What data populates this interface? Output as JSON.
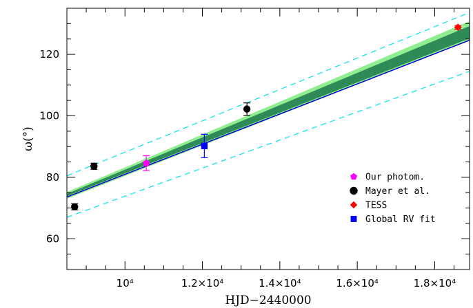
{
  "chart_data": {
    "type": "scatter",
    "xlabel": "HJD−2440000",
    "ylabel": "ω(°)",
    "xlim": [
      8500,
      18900
    ],
    "ylim": [
      50,
      135
    ],
    "x_ticks": [
      {
        "value": 10000,
        "label": "10⁴"
      },
      {
        "value": 12000,
        "label": "1.2×10⁴"
      },
      {
        "value": 14000,
        "label": "1.4×10⁴"
      },
      {
        "value": 16000,
        "label": "1.6×10⁴"
      },
      {
        "value": 18000,
        "label": "1.8×10⁴"
      }
    ],
    "y_ticks": [
      {
        "value": 60,
        "label": "60"
      },
      {
        "value": 80,
        "label": "80"
      },
      {
        "value": 100,
        "label": "100"
      },
      {
        "value": 120,
        "label": "120"
      }
    ],
    "bands": [
      {
        "name": "",
        "color": "#90ee90",
        "lower": [
          [
            8500,
            73.0
          ],
          [
            18900,
            124.6
          ]
        ],
        "upper": [
          [
            8500,
            75.2
          ],
          [
            18900,
            130.8
          ]
        ]
      },
      {
        "name": "",
        "color": "#2e8b57",
        "lower": [
          [
            8500,
            73.9
          ],
          [
            18900,
            125.2
          ]
        ],
        "upper": [
          [
            8500,
            74.6
          ],
          [
            18900,
            129.2
          ]
        ]
      }
    ],
    "lines": [
      {
        "name": "",
        "color": "#0000cd",
        "style": "solid",
        "points": [
          [
            8500,
            73.6
          ],
          [
            18900,
            124.6
          ]
        ]
      },
      {
        "name": "",
        "color": "#00e5ee",
        "style": "dashed",
        "points": [
          [
            8500,
            80.5
          ],
          [
            18900,
            133.6
          ]
        ]
      },
      {
        "name": "",
        "color": "#00e5ee",
        "style": "dashed",
        "points": [
          [
            8500,
            67.0
          ],
          [
            18900,
            114.5
          ]
        ]
      }
    ],
    "series": [
      {
        "name": "Our photom.",
        "color": "#ff00ff",
        "marker": "pentagon",
        "points": [
          {
            "x": 10550,
            "y": 84.6,
            "yerr": 2.4
          }
        ]
      },
      {
        "name": "Mayer et al.",
        "color": "#000000",
        "marker": "circle",
        "points": [
          {
            "x": 8700,
            "y": 70.4,
            "yerr": 1.0
          },
          {
            "x": 9200,
            "y": 83.6,
            "yerr": 1.0
          },
          {
            "x": 13150,
            "y": 102.2,
            "yerr": 2.0
          }
        ]
      },
      {
        "name": "TESS",
        "color": "#ff0000",
        "marker": "diamond",
        "points": [
          {
            "x": 18600,
            "y": 128.8,
            "yerr": 0.6
          }
        ]
      },
      {
        "name": "Global RV fit",
        "color": "#0000ff",
        "marker": "square",
        "points": [
          {
            "x": 12050,
            "y": 90.2,
            "yerr": 3.8
          }
        ]
      }
    ],
    "legend": {
      "position": "bottom-right"
    },
    "grid": false
  }
}
